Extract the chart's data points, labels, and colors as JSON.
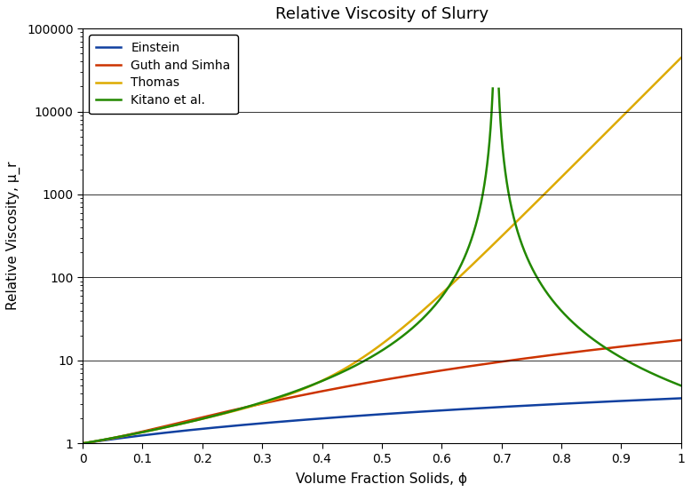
{
  "title": "Relative Viscosity of Slurry",
  "xlabel": "Volume Fraction Solids, ϕ",
  "ylabel": "Relative Viscosity, μ_r",
  "xlim": [
    0,
    1.0
  ],
  "ylim": [
    1,
    100000
  ],
  "legend_labels": [
    "Einstein",
    "Guth and Simha",
    "Thomas",
    "Kitano et al."
  ],
  "colors": {
    "Einstein": "#1040a0",
    "Guth and Simha": "#cc3300",
    "Thomas": "#ddaa00",
    "Kitano": "#228800"
  },
  "phi_max_kitano": 0.6905,
  "phi_max_thomas": 0.68,
  "background": "#ffffff",
  "grid_color": "#555555",
  "linewidth": 1.8
}
